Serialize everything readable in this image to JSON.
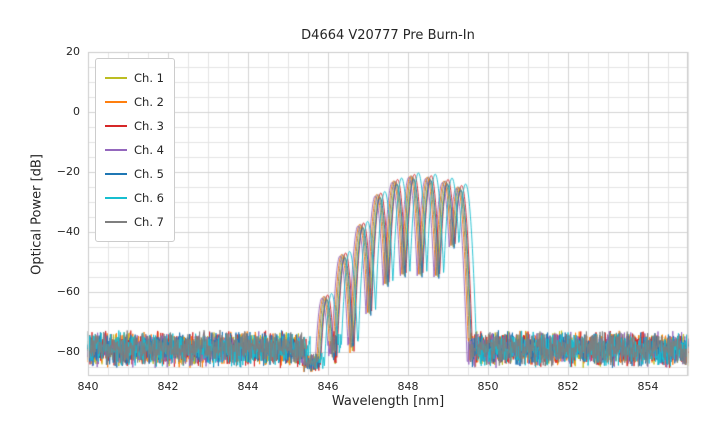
{
  "figure": {
    "title": "D4664 V20777 Pre Burn-In",
    "xlabel": "Wavelength [nm]",
    "ylabel": "Optical Power [dB]"
  },
  "legend": {
    "items": [
      {
        "label": "Ch. 1",
        "color": "#bcbd22"
      },
      {
        "label": "Ch. 2",
        "color": "#ff7f0e"
      },
      {
        "label": "Ch. 3",
        "color": "#d62728"
      },
      {
        "label": "Ch. 4",
        "color": "#9467bd"
      },
      {
        "label": "Ch. 5",
        "color": "#1f77b4"
      },
      {
        "label": "Ch. 6",
        "color": "#17becf"
      },
      {
        "label": "Ch. 7",
        "color": "#7f7f7f"
      }
    ]
  },
  "chart_data": {
    "type": "line",
    "title": "D4664 V20777 Pre Burn-In",
    "xlabel": "Wavelength [nm]",
    "ylabel": "Optical Power [dB]",
    "xlim": [
      840,
      855
    ],
    "ylim": [
      -88,
      20
    ],
    "xticks": [
      840,
      842,
      844,
      846,
      848,
      850,
      852,
      854
    ],
    "yticks": [
      20,
      0,
      -20,
      -40,
      -60,
      -80
    ],
    "x_minor_step": 0.5,
    "y_minor_step": 5,
    "grid": true,
    "grid_color_major": "#d4d4d4",
    "grid_color_minor": "#e4e4e4",
    "axes_border_color": "#cccccc",
    "legend_position": "upper left",
    "noise_floor_db": -79,
    "noise_jitter_db": 3.2,
    "pre_band_gap": {
      "start_nm": 845.42,
      "stop_nm": 845.82,
      "floor_db": -83.5
    },
    "lobe_halfwidth_nm": 0.22,
    "notch_depth_db": 36,
    "lobes": [
      {
        "center_nm": 845.95,
        "peak_db": -62.0
      },
      {
        "center_nm": 846.4,
        "peak_db": -48.0
      },
      {
        "center_nm": 846.85,
        "peak_db": -38.0
      },
      {
        "center_nm": 847.28,
        "peak_db": -28.0
      },
      {
        "center_nm": 847.7,
        "peak_db": -23.5
      },
      {
        "center_nm": 848.12,
        "peak_db": -21.8
      },
      {
        "center_nm": 848.54,
        "peak_db": -22.2
      },
      {
        "center_nm": 848.96,
        "peak_db": -23.5
      },
      {
        "center_nm": 849.3,
        "peak_db": -25.5
      }
    ],
    "series": [
      {
        "name": "Ch. 1",
        "color": "#bcbd22",
        "shift_nm": 0.0,
        "amp_offset_db": 0.0
      },
      {
        "name": "Ch. 2",
        "color": "#ff7f0e",
        "shift_nm": -0.06,
        "amp_offset_db": 0.5
      },
      {
        "name": "Ch. 3",
        "color": "#d62728",
        "shift_nm": 0.04,
        "amp_offset_db": 1.0
      },
      {
        "name": "Ch. 4",
        "color": "#9467bd",
        "shift_nm": -0.1,
        "amp_offset_db": 0.0
      },
      {
        "name": "Ch. 5",
        "color": "#1f77b4",
        "shift_nm": 0.02,
        "amp_offset_db": -0.5
      },
      {
        "name": "Ch. 6",
        "color": "#17becf",
        "shift_nm": 0.14,
        "amp_offset_db": 1.5
      },
      {
        "name": "Ch. 7",
        "color": "#7f7f7f",
        "shift_nm": -0.03,
        "amp_offset_db": 0.5
      }
    ]
  }
}
